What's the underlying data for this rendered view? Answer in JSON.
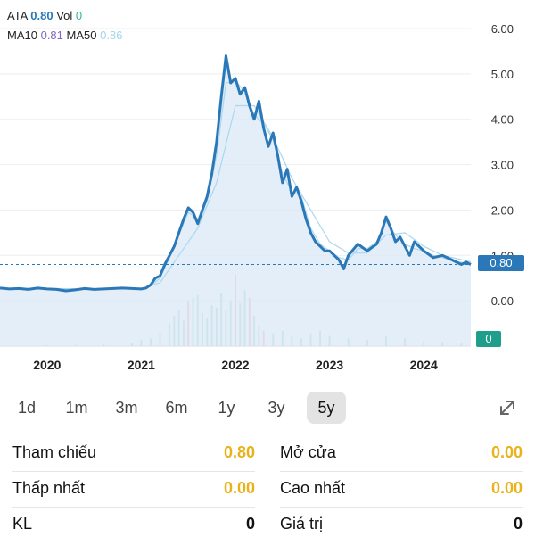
{
  "legend": {
    "line1": {
      "symbol": "ATA",
      "price": "0.80",
      "vol_label": "Vol",
      "vol": "0"
    },
    "line2": {
      "ma10_label": "MA10",
      "ma10": "0.81",
      "ma50_label": "MA50",
      "ma50": "0.86"
    }
  },
  "colors": {
    "price_line": "#2a78b8",
    "area_fill": "#dbe8f5",
    "ma_line": "#a9d8ee",
    "volume": "#a8dcd0",
    "volume_red": "#f2b3b3",
    "accent_yellow": "#e8b21a"
  },
  "price_badge": "0.80",
  "volume_badge": "0",
  "periods": [
    {
      "label": "1d",
      "active": false
    },
    {
      "label": "1m",
      "active": false
    },
    {
      "label": "3m",
      "active": false
    },
    {
      "label": "6m",
      "active": false
    },
    {
      "label": "1y",
      "active": false
    },
    {
      "label": "3y",
      "active": false
    },
    {
      "label": "5y",
      "active": true
    }
  ],
  "expand_icon": "expand-diagonal-icon",
  "stats": [
    {
      "label": "Tham chiếu",
      "value": "0.80",
      "color": "yellow"
    },
    {
      "label": "Mở cửa",
      "value": "0.00",
      "color": "yellow"
    },
    {
      "label": "Thấp nhất",
      "value": "0.00",
      "color": "yellow"
    },
    {
      "label": "Cao nhất",
      "value": "0.00",
      "color": "yellow"
    },
    {
      "label": "KL",
      "value": "0",
      "color": "black"
    },
    {
      "label": "Giá trị",
      "value": "0",
      "color": "black"
    }
  ],
  "chart_data": {
    "type": "line",
    "title": "",
    "xlabel": "",
    "ylabel": "",
    "y_ticks": [
      "6.00",
      "5.00",
      "4.00",
      "3.00",
      "2.00",
      "1.00",
      "0.00"
    ],
    "x_ticks": [
      "2020",
      "2021",
      "2022",
      "2023",
      "2024"
    ],
    "ylim": [
      -1.0,
      6.0
    ],
    "xlim": [
      2019.5,
      2024.5
    ],
    "reference_price": 0.8,
    "grid": true,
    "series": [
      {
        "name": "ATA",
        "x": [
          2019.5,
          2019.6,
          2019.7,
          2019.8,
          2019.9,
          2020.0,
          2020.1,
          2020.2,
          2020.3,
          2020.4,
          2020.5,
          2020.6,
          2020.7,
          2020.8,
          2020.9,
          2021.0,
          2021.05,
          2021.1,
          2021.15,
          2021.2,
          2021.25,
          2021.3,
          2021.35,
          2021.4,
          2021.45,
          2021.5,
          2021.55,
          2021.6,
          2021.65,
          2021.7,
          2021.75,
          2021.8,
          2021.85,
          2021.9,
          2021.95,
          2022.0,
          2022.05,
          2022.1,
          2022.15,
          2022.2,
          2022.25,
          2022.3,
          2022.35,
          2022.4,
          2022.45,
          2022.5,
          2022.55,
          2022.6,
          2022.65,
          2022.7,
          2022.75,
          2022.8,
          2022.85,
          2022.9,
          2022.95,
          2023.0,
          2023.05,
          2023.1,
          2023.15,
          2023.2,
          2023.3,
          2023.4,
          2023.5,
          2023.55,
          2023.6,
          2023.65,
          2023.7,
          2023.75,
          2023.8,
          2023.85,
          2023.9,
          2024.0,
          2024.1,
          2024.2,
          2024.3,
          2024.4,
          2024.45,
          2024.5
        ],
        "y": [
          0.28,
          0.26,
          0.27,
          0.25,
          0.28,
          0.26,
          0.25,
          0.22,
          0.24,
          0.27,
          0.25,
          0.26,
          0.27,
          0.28,
          0.27,
          0.26,
          0.28,
          0.35,
          0.5,
          0.55,
          0.8,
          1.0,
          1.2,
          1.5,
          1.8,
          2.05,
          1.95,
          1.7,
          2.0,
          2.3,
          2.8,
          3.5,
          4.5,
          5.4,
          4.8,
          4.9,
          4.55,
          4.7,
          4.3,
          4.0,
          4.4,
          3.8,
          3.4,
          3.7,
          3.2,
          2.6,
          2.9,
          2.3,
          2.5,
          2.2,
          1.8,
          1.5,
          1.3,
          1.2,
          1.1,
          1.1,
          1.0,
          0.9,
          0.7,
          1.0,
          1.25,
          1.1,
          1.25,
          1.5,
          1.85,
          1.6,
          1.3,
          1.4,
          1.2,
          1.0,
          1.3,
          1.1,
          0.95,
          1.0,
          0.9,
          0.8,
          0.85,
          0.8
        ]
      },
      {
        "name": "MA10",
        "x": [
          2019.5,
          2020.0,
          2020.5,
          2021.0,
          2021.1,
          2021.2,
          2021.3,
          2021.4,
          2021.5,
          2021.6,
          2021.7,
          2021.8,
          2021.9,
          2022.0,
          2022.1,
          2022.2,
          2022.3,
          2022.4,
          2022.5,
          2022.6,
          2022.7,
          2022.8,
          2022.9,
          2023.0,
          2023.1,
          2023.2,
          2023.3,
          2023.4,
          2023.5,
          2023.6,
          2023.7,
          2023.8,
          2023.9,
          2024.0,
          2024.1,
          2024.2,
          2024.3,
          2024.5
        ],
        "y": [
          0.27,
          0.26,
          0.26,
          0.27,
          0.33,
          0.5,
          0.95,
          1.45,
          1.95,
          1.8,
          2.2,
          3.2,
          4.8,
          4.85,
          4.6,
          4.1,
          3.9,
          3.55,
          2.8,
          2.4,
          2.3,
          1.6,
          1.25,
          1.1,
          0.95,
          0.9,
          1.15,
          1.15,
          1.3,
          1.75,
          1.45,
          1.25,
          1.15,
          1.1,
          1.0,
          0.95,
          0.88,
          0.81
        ]
      },
      {
        "name": "MA50",
        "x": [
          2019.5,
          2020.0,
          2020.5,
          2021.0,
          2021.2,
          2021.4,
          2021.6,
          2021.8,
          2022.0,
          2022.2,
          2022.4,
          2022.6,
          2022.8,
          2023.0,
          2023.2,
          2023.4,
          2023.6,
          2023.8,
          2024.0,
          2024.2,
          2024.5
        ],
        "y": [
          0.27,
          0.27,
          0.26,
          0.26,
          0.4,
          1.0,
          1.6,
          2.6,
          4.3,
          4.3,
          3.6,
          2.7,
          2.0,
          1.3,
          1.05,
          1.05,
          1.45,
          1.5,
          1.2,
          1.0,
          0.86
        ]
      }
    ],
    "volume": {
      "x": [
        2020.0,
        2020.3,
        2020.6,
        2020.9,
        2021.0,
        2021.1,
        2021.2,
        2021.3,
        2021.35,
        2021.4,
        2021.45,
        2021.5,
        2021.55,
        2021.6,
        2021.65,
        2021.7,
        2021.75,
        2021.8,
        2021.85,
        2021.9,
        2021.95,
        2022.0,
        2022.05,
        2022.1,
        2022.15,
        2022.2,
        2022.25,
        2022.3,
        2022.4,
        2022.5,
        2022.6,
        2022.7,
        2022.8,
        2022.9,
        2023.0,
        2023.2,
        2023.4,
        2023.6,
        2023.8,
        2024.0,
        2024.2,
        2024.4
      ],
      "values": [
        0.02,
        0.03,
        0.04,
        0.06,
        0.12,
        0.15,
        0.25,
        0.45,
        0.6,
        0.7,
        0.5,
        0.9,
        0.95,
        1.0,
        0.65,
        0.55,
        0.8,
        0.75,
        1.05,
        0.7,
        0.9,
        1.4,
        0.85,
        1.1,
        0.95,
        0.6,
        0.4,
        0.3,
        0.25,
        0.3,
        0.2,
        0.15,
        0.25,
        0.3,
        0.2,
        0.15,
        0.12,
        0.2,
        0.15,
        0.1,
        0.08,
        0.06
      ],
      "red_bars_x": [
        2021.5,
        2022.0,
        2022.15,
        2022.3
      ]
    }
  }
}
